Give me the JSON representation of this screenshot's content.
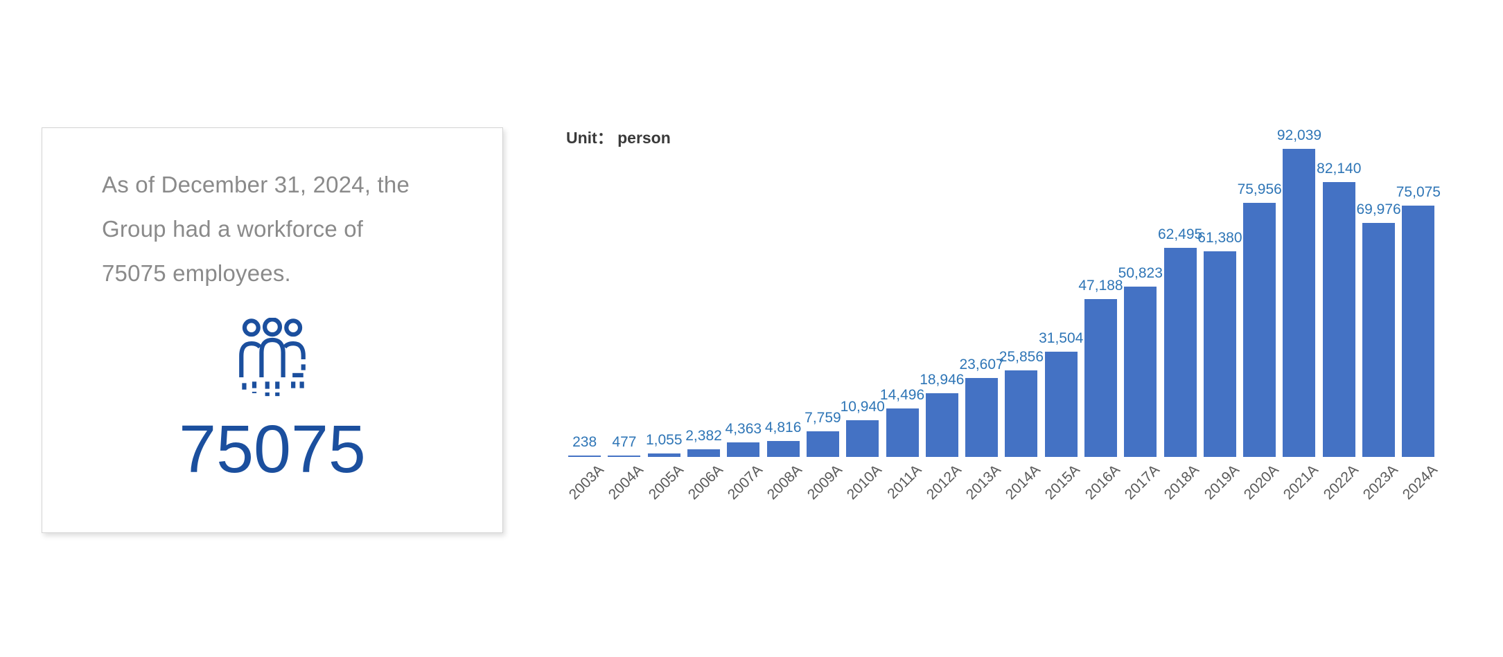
{
  "card": {
    "text_lines": {
      "0": "As of December 31, 2024, the",
      "1": "Group had a workforce of",
      "2": "75075 employees."
    },
    "headcount": "75075",
    "icon": "people-icon",
    "text_color": "#8a8a8a",
    "accent_color": "#1b4f9e"
  },
  "chart": {
    "unit_label": "Unit：  person"
  },
  "chart_data": {
    "type": "bar",
    "title": "",
    "xlabel": "",
    "ylabel": "Unit: person",
    "categories": [
      "2003A",
      "2004A",
      "2005A",
      "2006A",
      "2007A",
      "2008A",
      "2009A",
      "2010A",
      "2011A",
      "2012A",
      "2013A",
      "2014A",
      "2015A",
      "2016A",
      "2017A",
      "2018A",
      "2019A",
      "2020A",
      "2021A",
      "2022A",
      "2023A",
      "2024A"
    ],
    "values": [
      238,
      477,
      1055,
      2382,
      4363,
      4816,
      7759,
      10940,
      14496,
      18946,
      23607,
      25856,
      31504,
      47188,
      50823,
      62495,
      61380,
      75956,
      92039,
      82140,
      69976,
      75075
    ],
    "ylim": [
      0,
      100000
    ],
    "grid": false,
    "legend": false,
    "value_labels": true,
    "bar_color": "#4472c4",
    "value_label_color": "#2e75b6",
    "axis_label_color": "#595959"
  }
}
